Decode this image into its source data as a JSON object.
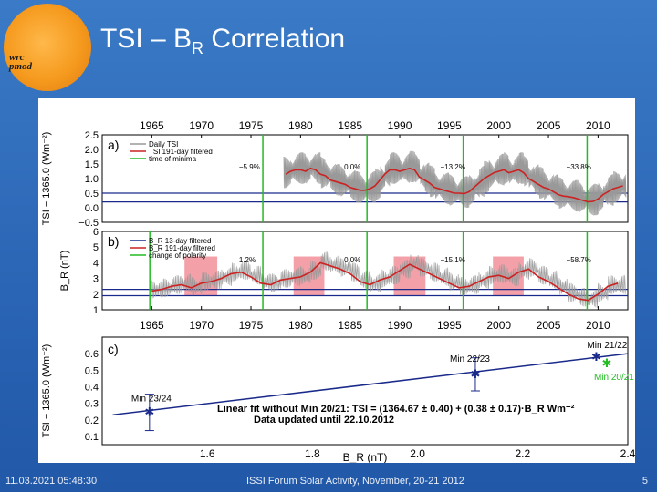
{
  "slide": {
    "title_main": "TSI – B",
    "title_sub": "R",
    "title_rest": "  Correlation",
    "logo_line1": "pmod",
    "logo_line2": "wrc",
    "footer_left": "11.03.2021 05:48:30",
    "footer_center": "ISSI Forum Solar Activity, November, 20-21 2012",
    "footer_right": "5"
  },
  "chart_data": [
    {
      "type": "line",
      "panel_label": "a)",
      "ylabel": "TSI − 1365.0 (Wm⁻²)",
      "ylim": [
        -0.5,
        2.5
      ],
      "yticks": [
        "2.5",
        "2.0",
        "1.5",
        "1.0",
        "0.5",
        "0.0",
        "−0.5"
      ],
      "xlim": [
        1960,
        2013
      ],
      "xticks": [
        "1965",
        "1970",
        "1975",
        "1980",
        "1985",
        "1990",
        "1995",
        "2000",
        "2005",
        "2010"
      ],
      "legend": [
        "Daily TSI",
        "TSI 191-day filtered",
        "time of minima"
      ],
      "minima_years": [
        1976.2,
        1986.7,
        1996.4,
        2008.9
      ],
      "reference_levels": [
        0.5,
        0.2
      ],
      "annotations": [
        "−5.9%",
        "0.0%",
        "−13.2%",
        "−33.8%"
      ],
      "series": [
        {
          "name": "TSI 191-day filtered",
          "x": [
            1978.5,
            1979,
            1979.5,
            1980,
            1980.5,
            1981,
            1981.5,
            1982,
            1982.5,
            1983,
            1983.5,
            1984,
            1984.5,
            1985,
            1985.5,
            1986,
            1986.5,
            1987,
            1987.5,
            1988,
            1988.5,
            1989,
            1989.5,
            1990,
            1990.5,
            1991,
            1991.5,
            1992,
            1992.5,
            1993,
            1993.5,
            1994,
            1994.5,
            1995,
            1995.5,
            1996,
            1996.5,
            1997,
            1997.5,
            1998,
            1998.5,
            1999,
            1999.5,
            2000,
            2000.5,
            2001,
            2001.5,
            2002,
            2002.5,
            2003,
            2003.5,
            2004,
            2004.5,
            2005,
            2005.5,
            2006,
            2006.5,
            2007,
            2007.5,
            2008,
            2008.5,
            2009,
            2009.5,
            2010,
            2010.5,
            2011,
            2011.5,
            2012,
            2012.5
          ],
          "values": [
            1.15,
            1.25,
            1.3,
            1.3,
            1.25,
            1.35,
            1.3,
            1.15,
            1.1,
            0.95,
            0.9,
            0.85,
            0.8,
            0.7,
            0.65,
            0.6,
            0.6,
            0.65,
            0.75,
            0.95,
            1.15,
            1.3,
            1.3,
            1.25,
            1.3,
            1.35,
            1.3,
            1.05,
            0.95,
            0.85,
            0.7,
            0.65,
            0.6,
            0.55,
            0.5,
            0.5,
            0.48,
            0.55,
            0.7,
            0.85,
            1.0,
            1.1,
            1.2,
            1.25,
            1.3,
            1.2,
            1.25,
            1.3,
            1.2,
            1.0,
            0.9,
            0.8,
            0.7,
            0.65,
            0.55,
            0.45,
            0.4,
            0.38,
            0.35,
            0.3,
            0.25,
            0.2,
            0.22,
            0.3,
            0.45,
            0.55,
            0.65,
            0.7,
            0.75
          ]
        }
      ]
    },
    {
      "type": "line",
      "panel_label": "b)",
      "ylabel": "B_R (nT)",
      "ylim": [
        1,
        6
      ],
      "yticks": [
        "6",
        "5",
        "4",
        "3",
        "2",
        "1"
      ],
      "xticks": [
        "1965",
        "1970",
        "1975",
        "1980",
        "1985",
        "1990",
        "1995",
        "2000",
        "2005",
        "2010"
      ],
      "legend": [
        "B_R 13-day filtered",
        "B_R 191-day filtered",
        "change of polarity"
      ],
      "reference_levels": [
        2.3,
        1.9
      ],
      "polarity_change_periods": [
        [
          1968.3,
          1971.6
        ],
        [
          1979.3,
          1982.4
        ],
        [
          1989.4,
          1992.6
        ],
        [
          1999.4,
          2002.5
        ]
      ],
      "annotations": [
        "1.2%",
        "0.0%",
        "−15.1%",
        "−58.7%"
      ],
      "series": [
        {
          "name": "B_R 191-day filtered",
          "x": [
            1965,
            1966,
            1967,
            1968,
            1969,
            1970,
            1971,
            1972,
            1973,
            1974,
            1975,
            1976,
            1977,
            1978,
            1979,
            1980,
            1981,
            1982,
            1983,
            1984,
            1985,
            1986,
            1987,
            1988,
            1989,
            1990,
            1991,
            1992,
            1993,
            1994,
            1995,
            1996,
            1997,
            1998,
            1999,
            2000,
            2001,
            2002,
            2003,
            2004,
            2005,
            2006,
            2007,
            2008,
            2009,
            2010,
            2011,
            2012
          ],
          "values": [
            2.2,
            2.3,
            2.5,
            2.6,
            2.4,
            2.7,
            2.8,
            3.0,
            3.3,
            3.4,
            3.1,
            2.7,
            2.6,
            2.9,
            3.0,
            3.1,
            3.4,
            4.0,
            3.8,
            3.6,
            3.3,
            2.8,
            2.6,
            2.9,
            3.1,
            3.5,
            3.9,
            3.6,
            3.3,
            3.0,
            2.7,
            2.4,
            2.5,
            2.8,
            3.1,
            3.2,
            3.0,
            3.4,
            3.6,
            3.1,
            2.8,
            2.4,
            2.0,
            1.7,
            1.6,
            2.0,
            2.5,
            2.7
          ]
        }
      ]
    },
    {
      "type": "scatter",
      "panel_label": "c)",
      "ylabel": "TSI − 1365.0 (Wm⁻²)",
      "xlabel": "B_R (nT)",
      "xlim": [
        1.4,
        2.4
      ],
      "ylim": [
        0.05,
        0.7
      ],
      "xticks": [
        "1.6",
        "1.8",
        "2.0",
        "2.2",
        "2.4"
      ],
      "yticks": [
        "0.6",
        "0.5",
        "0.4",
        "0.3",
        "0.2",
        "0.1"
      ],
      "points": [
        {
          "label": "Min 23/24",
          "x": 1.49,
          "y": 0.245,
          "err": 0.11
        },
        {
          "label": "Min 22/23",
          "x": 2.11,
          "y": 0.475,
          "err": 0.1
        },
        {
          "label": "Min 21/22",
          "x": 2.34,
          "y": 0.58,
          "err": 0
        },
        {
          "label": "Min 20/21",
          "x": 2.36,
          "y": 0.54,
          "err": 0
        }
      ],
      "fit_line": {
        "x": [
          1.42,
          2.4
        ],
        "y": [
          0.23,
          0.6
        ]
      },
      "fit_text": "Linear fit without Min 20/21: TSI = (1364.67 ± 0.40) + (0.38 ± 0.17)·B_R Wm⁻²",
      "updated_text": "Data updated until 22.10.2012"
    }
  ],
  "colors": {
    "tsi": "#cc2222",
    "minima": "#22bb22",
    "ref": "#1a2a8a",
    "polarity": "#f4a0a8",
    "daily": "#999999"
  }
}
